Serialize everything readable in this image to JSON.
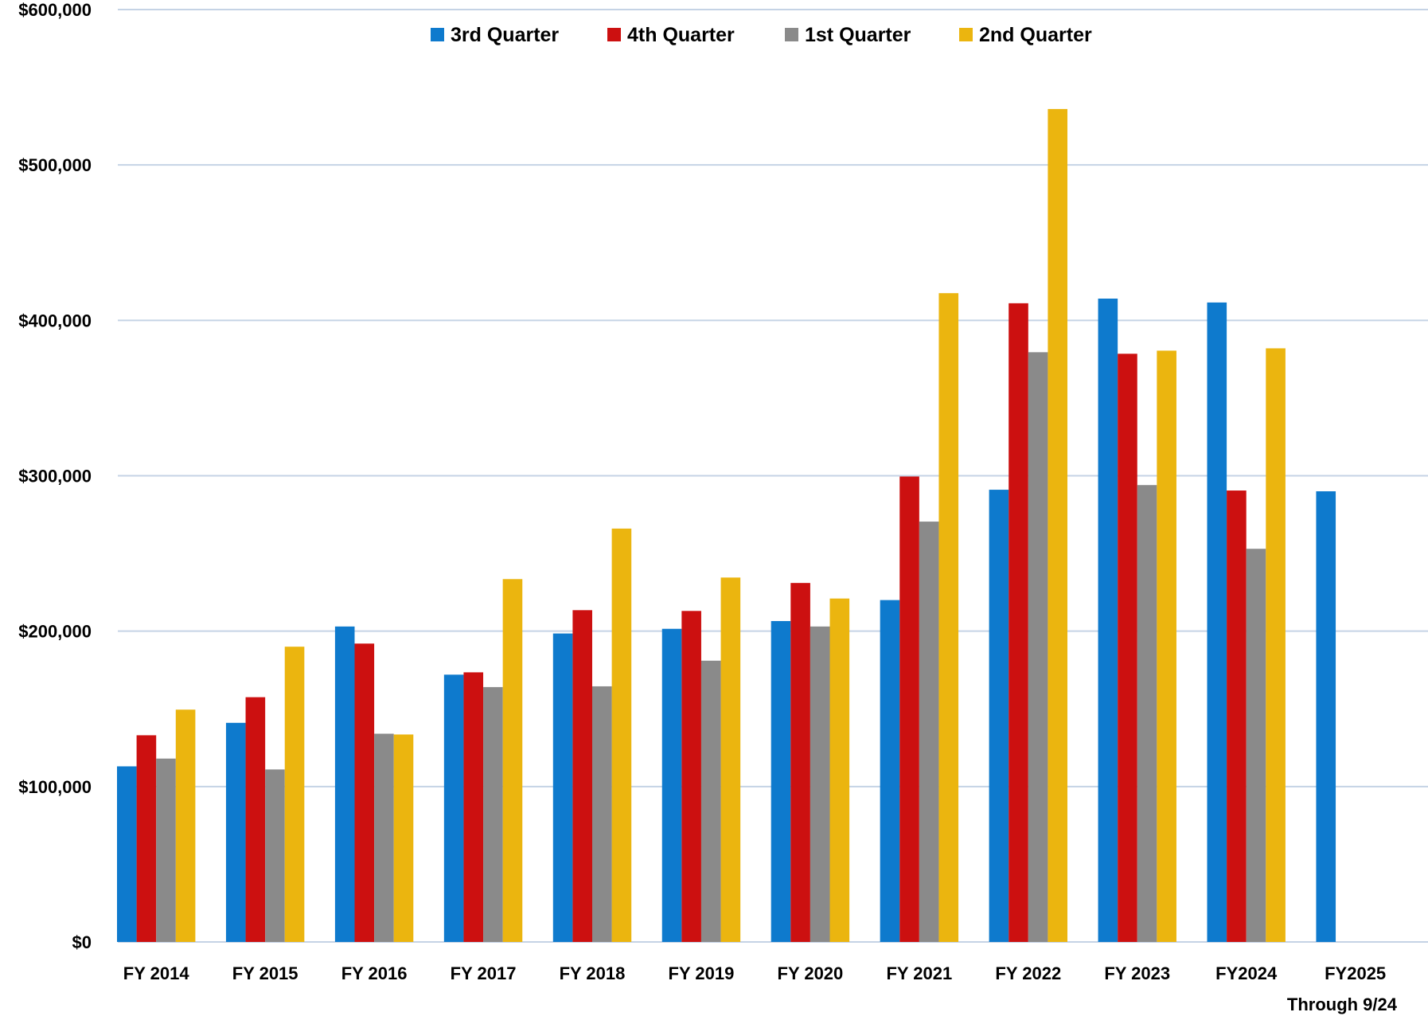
{
  "chart_data": {
    "type": "bar",
    "title": "",
    "xlabel": "",
    "ylabel": "",
    "ylim": [
      0,
      600000
    ],
    "y_ticks": [
      0,
      100000,
      200000,
      300000,
      400000,
      500000,
      600000
    ],
    "y_tick_labels": [
      "$0",
      "$100,000",
      "$200,000",
      "$300,000",
      "$400,000",
      "$500,000",
      "$600,000"
    ],
    "grid": true,
    "legend_position": "top-center",
    "categories": [
      "FY 2014",
      "FY 2015",
      "FY 2016",
      "FY 2017",
      "FY 2018",
      "FY 2019",
      "FY 2020",
      "FY 2021",
      "FY 2022",
      "FY 2023",
      "FY2024",
      "FY2025"
    ],
    "category_sublabels": [
      "",
      "",
      "",
      "",
      "",
      "",
      "",
      "",
      "",
      "",
      "",
      "Through 9/24"
    ],
    "series": [
      {
        "name": "3rd Quarter",
        "color": "#0e7acd",
        "values": [
          113000,
          141000,
          203000,
          172000,
          198500,
          201500,
          206500,
          220000,
          291000,
          414000,
          411500,
          290000
        ]
      },
      {
        "name": "4th Quarter",
        "color": "#cc1010",
        "values": [
          133000,
          157500,
          192000,
          173500,
          213500,
          213000,
          231000,
          299500,
          411000,
          378500,
          290500,
          null
        ]
      },
      {
        "name": "1st Quarter",
        "color": "#8a8a8a",
        "values": [
          118000,
          111000,
          134000,
          164000,
          164500,
          181000,
          203000,
          270500,
          379500,
          294000,
          253000,
          null
        ]
      },
      {
        "name": "2nd Quarter",
        "color": "#ebb50f",
        "values": [
          149500,
          190000,
          133500,
          233500,
          266000,
          234500,
          221000,
          417500,
          536000,
          380500,
          382000,
          null
        ]
      }
    ]
  }
}
